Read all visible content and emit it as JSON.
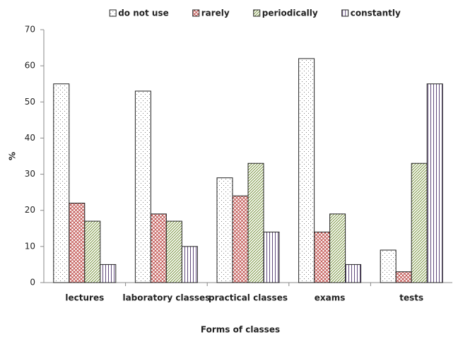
{
  "chart_data": {
    "type": "bar",
    "x_label": "Forms of classes",
    "y_label": "%",
    "categories": [
      "lectures",
      "laboratory classes",
      "practical classes",
      "exams",
      "tests"
    ],
    "series": [
      {
        "name": "do not use",
        "color": "#808080",
        "pattern": "dots",
        "values": [
          55,
          53,
          29,
          62,
          9
        ]
      },
      {
        "name": "rarely",
        "color": "#c0504d",
        "pattern": "crosshatch",
        "values": [
          22,
          19,
          24,
          14,
          3
        ]
      },
      {
        "name": "periodically",
        "color": "#77933c",
        "pattern": "diagonal",
        "values": [
          17,
          17,
          33,
          19,
          33
        ]
      },
      {
        "name": "constantly",
        "color": "#604a7b",
        "pattern": "vertical",
        "values": [
          5,
          10,
          14,
          5,
          55
        ]
      }
    ],
    "ylim": [
      0,
      70
    ],
    "yticks": [
      0,
      10,
      20,
      30,
      40,
      50,
      60,
      70
    ],
    "grid": false,
    "legend": "top"
  }
}
